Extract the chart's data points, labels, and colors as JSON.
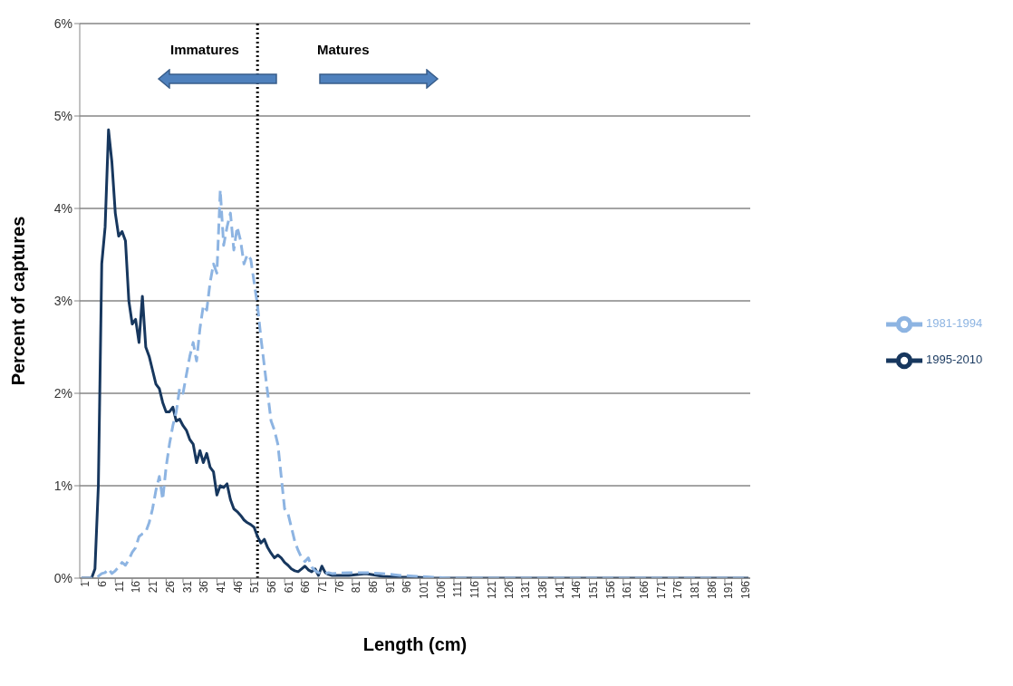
{
  "chart_data": {
    "type": "line",
    "xlabel": "Length (cm)",
    "ylabel": "Percent of captures",
    "annotations": [
      "Immatures",
      "Matures"
    ],
    "xlim": [
      0.5,
      198.5
    ],
    "xticks": [
      1,
      6,
      11,
      16,
      21,
      26,
      31,
      36,
      41,
      46,
      51,
      56,
      61,
      66,
      71,
      76,
      81,
      86,
      91,
      96,
      101,
      106,
      111,
      116,
      121,
      126,
      131,
      136,
      141,
      146,
      151,
      156,
      161,
      166,
      171,
      176,
      181,
      186,
      191,
      196
    ],
    "ylim": [
      0,
      6
    ],
    "yticks": [
      {
        "value": 0,
        "label": "0%"
      },
      {
        "value": 1,
        "label": "1%"
      },
      {
        "value": 2,
        "label": "2%"
      },
      {
        "value": 3,
        "label": "3%"
      },
      {
        "value": 4,
        "label": "4%"
      },
      {
        "value": 5,
        "label": "5%"
      },
      {
        "value": 6,
        "label": "6%"
      }
    ],
    "grid": "y",
    "legend": "right",
    "marker": "none",
    "ref_lines": [
      {
        "axis": "x",
        "value": 53,
        "color": "#000000",
        "line_style": "dotted"
      }
    ],
    "series": [
      {
        "name": "1995-2010",
        "color": "#17375e",
        "line_style": "solid",
        "x": [
          1,
          2,
          3,
          4,
          5,
          6,
          7,
          8,
          9,
          10,
          11,
          12,
          13,
          14,
          15,
          16,
          17,
          18,
          19,
          20,
          21,
          22,
          23,
          24,
          25,
          26,
          27,
          28,
          29,
          30,
          31,
          32,
          33,
          34,
          35,
          36,
          37,
          38,
          39,
          40,
          41,
          42,
          43,
          44,
          45,
          46,
          47,
          48,
          49,
          50,
          51,
          52,
          53,
          54,
          55,
          56,
          57,
          58,
          59,
          60,
          61,
          62,
          63,
          64,
          65,
          66,
          67,
          68,
          69,
          70,
          71,
          72,
          73,
          74,
          75,
          80,
          85,
          90,
          95,
          100,
          105,
          198
        ],
        "values": [
          0,
          0,
          0,
          0,
          0.1,
          1.0,
          3.4,
          3.8,
          4.85,
          4.5,
          3.95,
          3.7,
          3.75,
          3.65,
          3.0,
          2.75,
          2.8,
          2.55,
          3.05,
          2.5,
          2.4,
          2.25,
          2.1,
          2.05,
          1.9,
          1.8,
          1.8,
          1.85,
          1.7,
          1.72,
          1.65,
          1.6,
          1.5,
          1.45,
          1.25,
          1.38,
          1.25,
          1.35,
          1.2,
          1.15,
          0.9,
          1.0,
          0.98,
          1.02,
          0.85,
          0.75,
          0.72,
          0.68,
          0.63,
          0.6,
          0.58,
          0.55,
          0.45,
          0.38,
          0.42,
          0.33,
          0.27,
          0.22,
          0.25,
          0.22,
          0.17,
          0.14,
          0.1,
          0.08,
          0.07,
          0.1,
          0.13,
          0.09,
          0.07,
          0.1,
          0.03,
          0.13,
          0.06,
          0.04,
          0.03,
          0.03,
          0.05,
          0.02,
          0.01,
          0.01,
          0,
          0
        ]
      },
      {
        "name": "1981-1994",
        "color": "#8db4e2",
        "line_style": "dashed",
        "x": [
          1,
          2,
          3,
          4,
          5,
          6,
          7,
          8,
          9,
          10,
          11,
          12,
          13,
          14,
          15,
          16,
          17,
          18,
          19,
          20,
          21,
          22,
          23,
          24,
          25,
          26,
          27,
          28,
          29,
          30,
          31,
          32,
          33,
          34,
          35,
          36,
          37,
          38,
          39,
          40,
          41,
          42,
          43,
          44,
          45,
          46,
          47,
          48,
          49,
          50,
          51,
          52,
          53,
          54,
          55,
          56,
          57,
          58,
          59,
          60,
          61,
          62,
          63,
          64,
          65,
          66,
          67,
          68,
          69,
          70,
          71,
          72,
          73,
          74,
          75,
          80,
          85,
          90,
          95,
          100,
          105,
          110,
          198
        ],
        "values": [
          0,
          0,
          0,
          0,
          0,
          0.02,
          0.05,
          0.06,
          0.1,
          0.05,
          0.08,
          0.12,
          0.17,
          0.14,
          0.2,
          0.28,
          0.33,
          0.45,
          0.48,
          0.5,
          0.6,
          0.75,
          0.95,
          1.1,
          0.85,
          1.2,
          1.45,
          1.65,
          1.8,
          2.05,
          2.0,
          2.2,
          2.4,
          2.55,
          2.35,
          2.7,
          2.95,
          2.9,
          3.2,
          3.4,
          3.3,
          4.2,
          3.6,
          3.8,
          3.95,
          3.55,
          3.8,
          3.65,
          3.4,
          3.5,
          3.45,
          3.2,
          2.95,
          2.6,
          2.3,
          2.0,
          1.7,
          1.6,
          1.45,
          1.1,
          0.75,
          0.7,
          0.55,
          0.4,
          0.3,
          0.22,
          0.18,
          0.22,
          0.12,
          0.08,
          0.06,
          0.05,
          0.05,
          0.06,
          0.05,
          0.06,
          0.06,
          0.05,
          0.03,
          0.02,
          0.01,
          0,
          0
        ]
      }
    ]
  }
}
